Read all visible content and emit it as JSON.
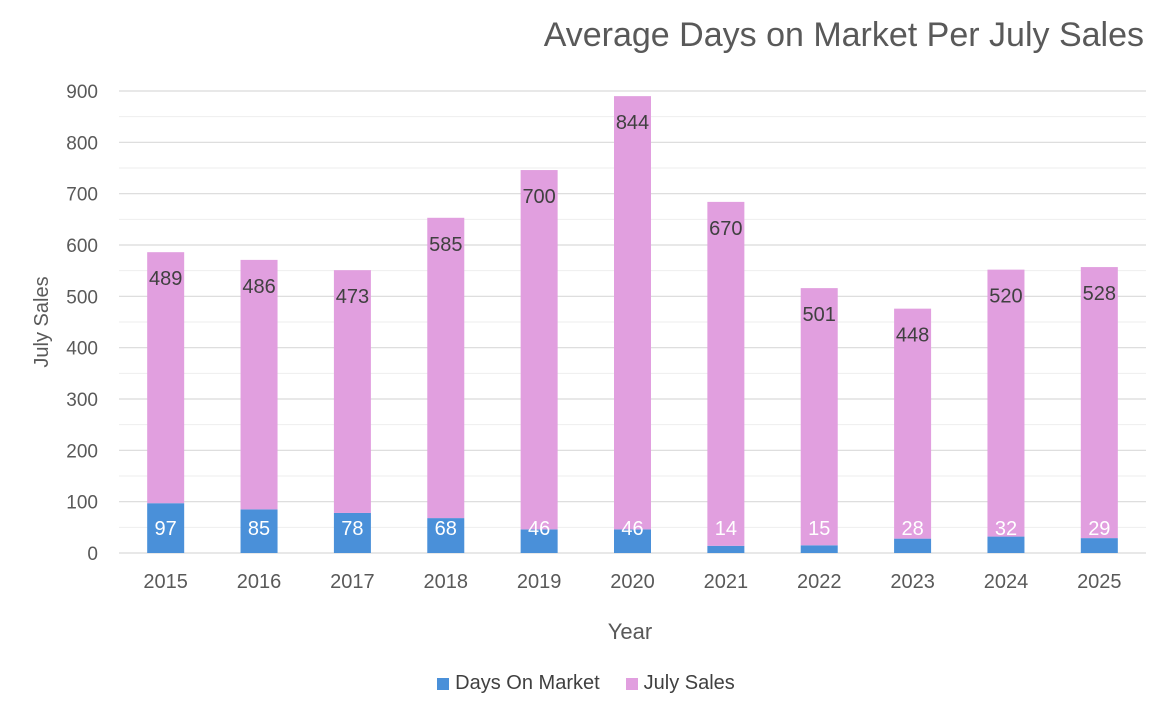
{
  "chart_data": {
    "type": "bar",
    "stacked": true,
    "title": "Average Days on Market Per July Sales",
    "xlabel": "Year",
    "ylabel": "July Sales",
    "ylim": [
      0,
      900
    ],
    "yticks": [
      0,
      100,
      200,
      300,
      400,
      500,
      600,
      700,
      800,
      900
    ],
    "grid": true,
    "legend_position": "bottom",
    "categories": [
      "2015",
      "2016",
      "2017",
      "2018",
      "2019",
      "2020",
      "2021",
      "2022",
      "2023",
      "2024",
      "2025"
    ],
    "series": [
      {
        "name": "Days On Market",
        "color": "#4a90d9",
        "label_color": "#ffffff",
        "values": [
          97,
          85,
          78,
          68,
          46,
          46,
          14,
          15,
          28,
          32,
          29
        ]
      },
      {
        "name": "July Sales",
        "color": "#e19fdf",
        "label_color": "#404040",
        "values": [
          489,
          486,
          473,
          585,
          700,
          844,
          670,
          501,
          448,
          520,
          528
        ]
      }
    ]
  }
}
